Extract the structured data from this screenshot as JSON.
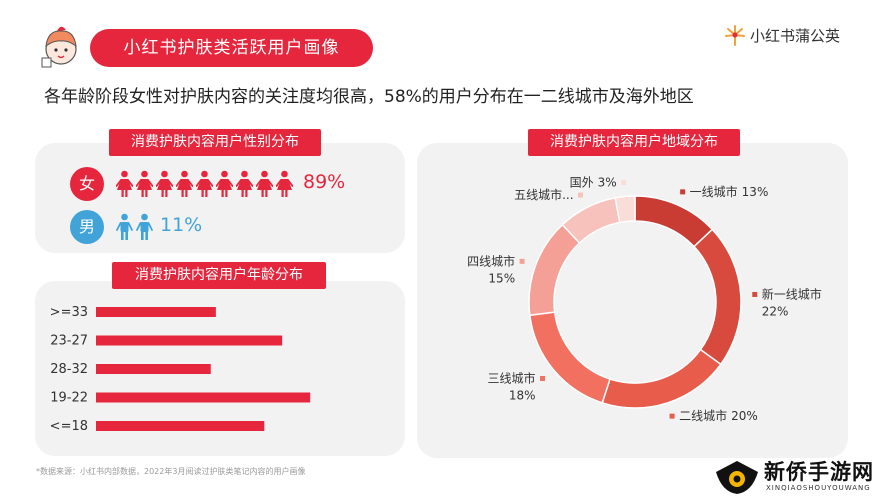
{
  "header": {
    "title": "小红书护肤类活跃用户画像",
    "brand": "小红书蒲公英",
    "subtitle": "各年龄阶段女性对护肤内容的关注度均很高，58%的用户分布在一二线城市及海外地区"
  },
  "colors": {
    "accent": "#e6263c",
    "male": "#41a3d8",
    "bar": "#e6263c",
    "panel": "#f2f2f2"
  },
  "gender": {
    "label": "消费护肤内容用户性别分布",
    "female": {
      "badge": "女",
      "percent": "89%",
      "value": 89,
      "icon": "female-person-icon",
      "icon_count": 9
    },
    "male": {
      "badge": "男",
      "percent": "11%",
      "value": 11,
      "icon": "male-person-icon",
      "icon_count": 2
    }
  },
  "footnote": "*数据来源：小红书内部数据，2022年3月阅读过护肤类笔记内容的用户画像",
  "watermark": {
    "name": "新侨手游网",
    "sub": "XINQIAOSHOUYOUWANG"
  },
  "chart_data": [
    {
      "type": "bar",
      "orientation": "horizontal",
      "title": "消费护肤内容用户年龄分布",
      "categories": [
        ">=33",
        "23-27",
        "28-32",
        "19-22",
        "<=18"
      ],
      "values": [
        0.235,
        0.365,
        0.225,
        0.42,
        0.33
      ],
      "grid": false,
      "legend": "none"
    },
    {
      "type": "pie",
      "variant": "donut",
      "title": "消费护肤内容用户地域分布",
      "labels": [
        "一线城市",
        "新一线城市",
        "二线城市",
        "三线城市",
        "四线城市",
        "五线城市...",
        "国外"
      ],
      "values": [
        13,
        22,
        20,
        18,
        15,
        null,
        3
      ],
      "value_labels": [
        "13%",
        "22%",
        "20%",
        "18%",
        "15%",
        "",
        "3%"
      ],
      "colors": [
        "#c83c34",
        "#d74a3d",
        "#e85c4c",
        "#f2705f",
        "#f5a097",
        "#f8c2bc",
        "#fadcd8"
      ],
      "legend": "callouts"
    }
  ]
}
